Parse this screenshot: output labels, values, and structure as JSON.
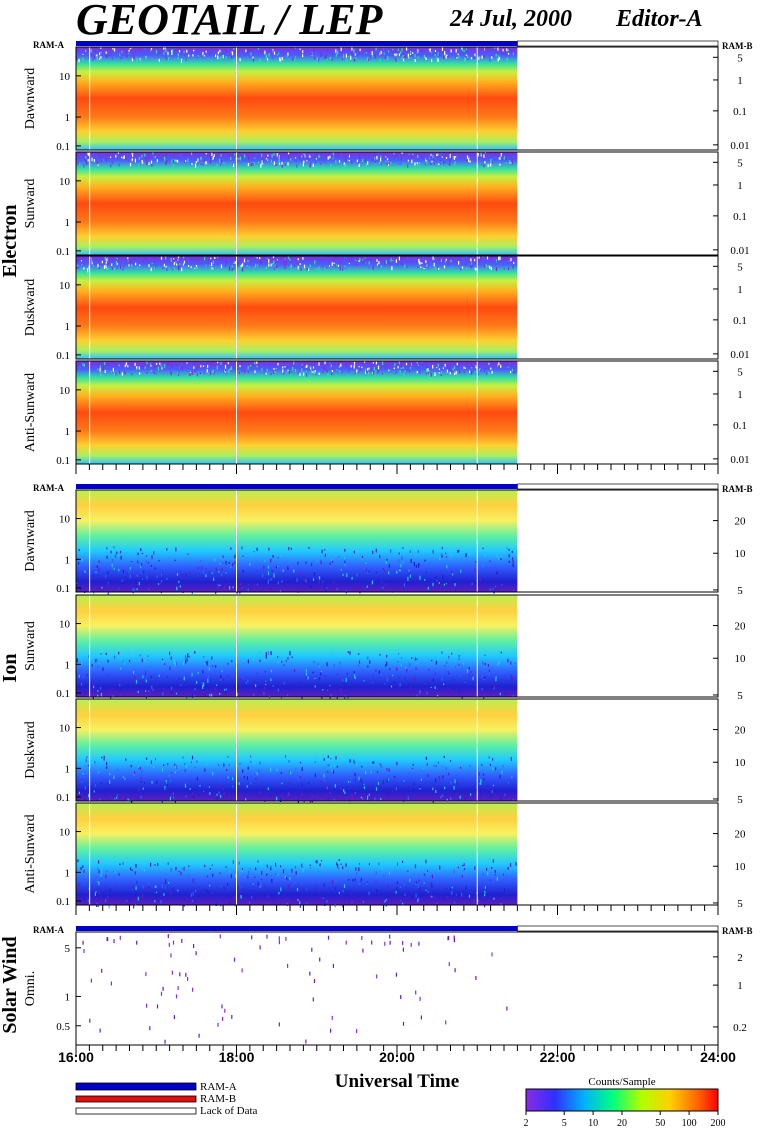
{
  "header": {
    "title": "GEOTAIL / LEP",
    "date": "24 Jul, 2000",
    "editor": "Editor-A"
  },
  "sections": [
    {
      "label": "Electron",
      "ram_a_label": "RAM-A",
      "ram_b_label": "RAM-B"
    },
    {
      "label": "Ion",
      "ram_a_label": "RAM-A",
      "ram_b_label": "RAM-B"
    },
    {
      "label": "Solar Wind",
      "ram_a_label": "RAM-A",
      "ram_b_label": "RAM-B"
    }
  ],
  "chart_data": [
    {
      "type": "heatmap",
      "section": "Electron",
      "panels": [
        {
          "ylabel": "Dawnward"
        },
        {
          "ylabel": "Sunward"
        },
        {
          "ylabel": "Duskward"
        },
        {
          "ylabel": "Anti-Sunward"
        }
      ],
      "y_ticks": [
        "10",
        "1",
        "0.1"
      ],
      "y_right_ticks": [
        "5",
        "1",
        "0.1",
        "0.01"
      ],
      "data_end_time": "21:30"
    },
    {
      "type": "heatmap",
      "section": "Ion",
      "panels": [
        {
          "ylabel": "Dawnward"
        },
        {
          "ylabel": "Sunward"
        },
        {
          "ylabel": "Duskward"
        },
        {
          "ylabel": "Anti-Sunward"
        }
      ],
      "y_ticks": [
        "10",
        "1",
        "0.1"
      ],
      "y_right_ticks": [
        "20",
        "10",
        "5"
      ],
      "data_end_time": "21:30"
    },
    {
      "type": "scatter",
      "section": "Solar Wind",
      "panels": [
        {
          "ylabel": "Omni."
        }
      ],
      "y_ticks": [
        "5",
        "1",
        "0.5"
      ],
      "y_right_ticks": [
        "2",
        "1",
        "0.2"
      ]
    }
  ],
  "x_axis": {
    "label": "Universal Time",
    "ticks": [
      "16:00",
      "18:00",
      "20:00",
      "22:00",
      "24:00"
    ],
    "range": [
      "16:00",
      "24:00"
    ]
  },
  "legend": {
    "items": [
      {
        "label": "RAM-A",
        "color": "#0000c8"
      },
      {
        "label": "RAM-B",
        "color": "#e01010"
      },
      {
        "label": "Lack of Data",
        "color": "#ffffff"
      }
    ]
  },
  "colorbar": {
    "title": "Counts/Sample",
    "ticks": [
      "2",
      "5",
      "10",
      "20",
      "50",
      "100",
      "200"
    ],
    "range": [
      2,
      200
    ],
    "scale": "log"
  }
}
